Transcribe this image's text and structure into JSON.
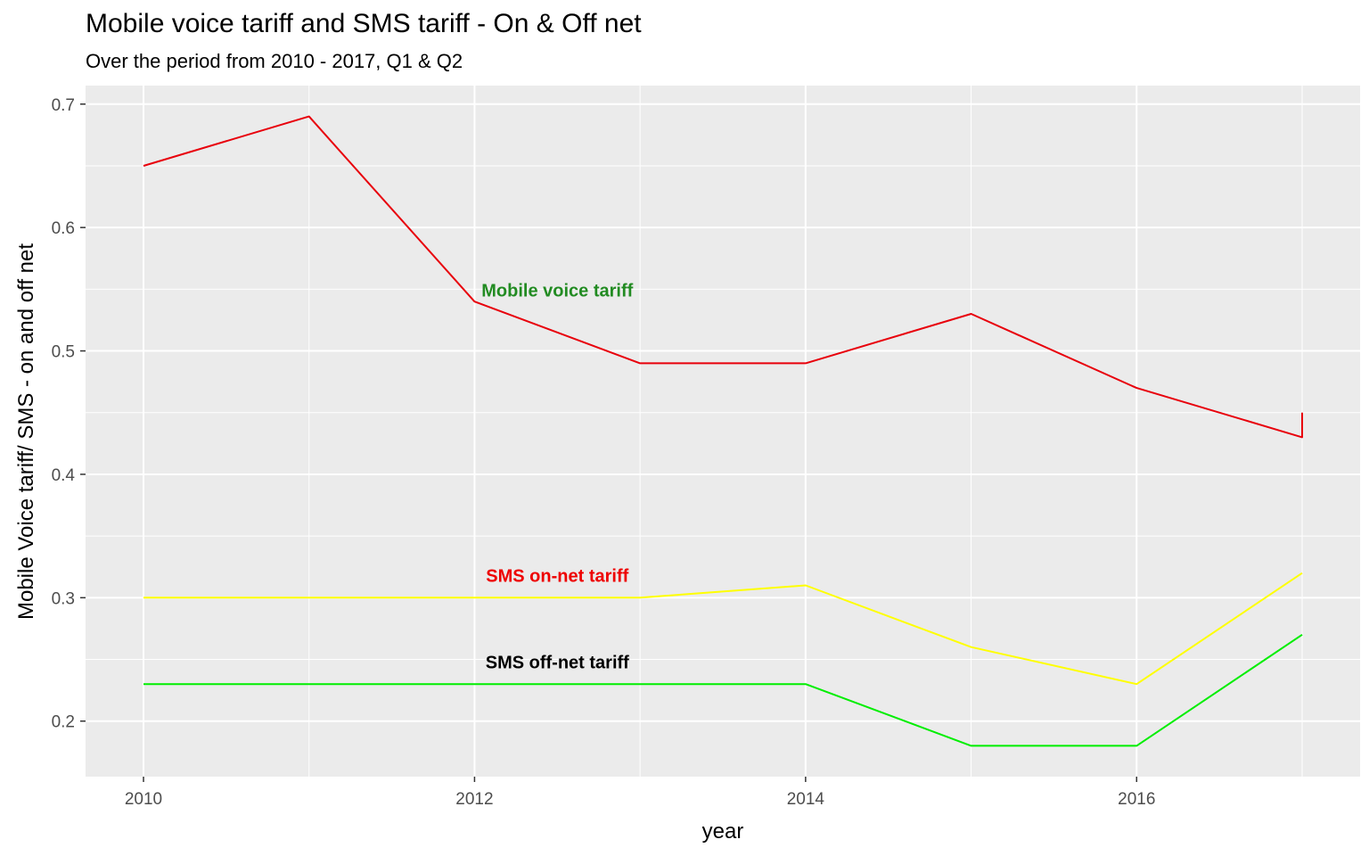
{
  "chart_data": {
    "type": "line",
    "title": "Mobile voice tariff and SMS tariff - On & Off net",
    "subtitle": "Over the period from 2010 - 2017, Q1 & Q2",
    "xlabel": "year",
    "ylabel": "Mobile Voice tariff/ SMS - on and off net",
    "xlim": [
      2009.65,
      2017.35
    ],
    "ylim": [
      0.155,
      0.715
    ],
    "x_ticks": [
      2010,
      2012,
      2014,
      2016
    ],
    "y_ticks": [
      0.2,
      0.3,
      0.4,
      0.5,
      0.6,
      0.7
    ],
    "grid": true,
    "background": "#ebebeb",
    "series": [
      {
        "color": "#e8000b",
        "points": [
          [
            2010,
            0.65
          ],
          [
            2011,
            0.69
          ],
          [
            2012,
            0.54
          ],
          [
            2013,
            0.49
          ],
          [
            2014,
            0.49
          ],
          [
            2015,
            0.53
          ],
          [
            2016,
            0.47
          ],
          [
            2017,
            0.43
          ],
          [
            2017,
            0.45
          ]
        ]
      },
      {
        "color": "#ffff00",
        "points": [
          [
            2010,
            0.3
          ],
          [
            2011,
            0.3
          ],
          [
            2012,
            0.3
          ],
          [
            2013,
            0.3
          ],
          [
            2014,
            0.31
          ],
          [
            2015,
            0.26
          ],
          [
            2016,
            0.23
          ],
          [
            2017,
            0.32
          ]
        ]
      },
      {
        "color": "#00ee00",
        "points": [
          [
            2010,
            0.23
          ],
          [
            2011,
            0.23
          ],
          [
            2012,
            0.23
          ],
          [
            2013,
            0.23
          ],
          [
            2014,
            0.23
          ],
          [
            2015,
            0.18
          ],
          [
            2016,
            0.18
          ],
          [
            2017,
            0.27
          ]
        ]
      }
    ],
    "annotations": [
      {
        "text": "Mobile voice tariff",
        "x": 2012.5,
        "y": 0.549,
        "color": "#228b22"
      },
      {
        "text": "SMS on-net tariff",
        "x": 2012.5,
        "y": 0.318,
        "color": "#ee0000"
      },
      {
        "text": "SMS off-net tariff",
        "x": 2012.5,
        "y": 0.248,
        "color": "#000000"
      }
    ]
  }
}
